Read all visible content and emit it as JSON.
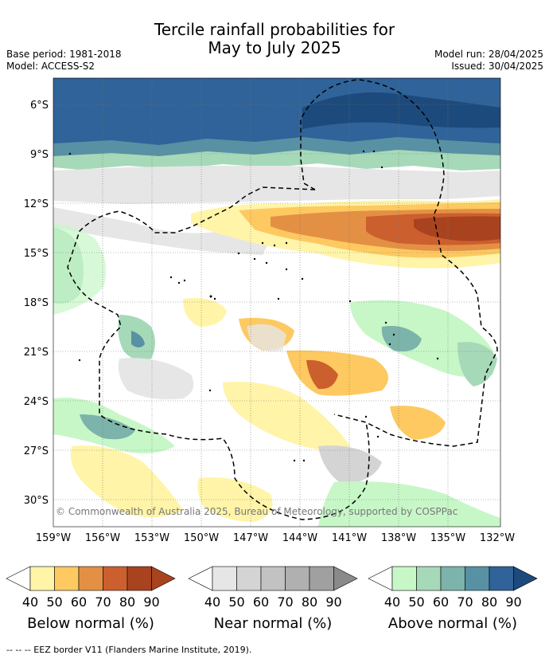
{
  "title": {
    "line1": "Tercile rainfall probabilities for",
    "line2": "May to July 2025"
  },
  "meta": {
    "base_period": "Base period: 1981-2018",
    "model": "Model: ACCESS-S2",
    "model_run": "Model run: 28/04/2025",
    "issued": "Issued: 30/04/2025"
  },
  "map": {
    "lat_labels": [
      "6°S",
      "9°S",
      "12°S",
      "15°S",
      "18°S",
      "21°S",
      "24°S",
      "27°S",
      "30°S"
    ],
    "lon_labels": [
      "159°W",
      "156°W",
      "153°W",
      "150°W",
      "147°W",
      "144°W",
      "141°W",
      "138°W",
      "135°W",
      "132°W"
    ],
    "copyright": "© Commonwealth of Australia 2025, Bureau of Meteorology, supported by COSPPac"
  },
  "legend": {
    "below": {
      "title": "Below normal (%)",
      "ticks": [
        "40",
        "50",
        "60",
        "70",
        "80",
        "90"
      ],
      "colors": [
        "#fff4a8",
        "#fdc960",
        "#e39045",
        "#cc5f2e",
        "#a9431f",
        "#a9431f"
      ]
    },
    "near": {
      "title": "Near normal (%)",
      "ticks": [
        "40",
        "50",
        "60",
        "70",
        "80",
        "90"
      ],
      "colors": [
        "#e6e6e6",
        "#d4d4d4",
        "#c2c2c2",
        "#b0b0b0",
        "#a0a0a0",
        "#8a8a8a"
      ]
    },
    "above": {
      "title": "Above normal (%)",
      "ticks": [
        "40",
        "50",
        "60",
        "70",
        "80",
        "90"
      ],
      "colors": [
        "#c7f7c7",
        "#a6d9b8",
        "#7cb3aa",
        "#5891a4",
        "#2f6399",
        "#1d4a7c"
      ]
    }
  },
  "footer": "-- -- -- EEZ border V11 (Flanders Marine Institute, 2019)."
}
